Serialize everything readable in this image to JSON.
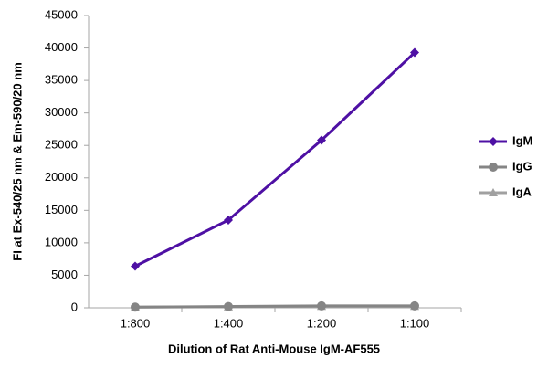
{
  "chart_data": {
    "type": "line",
    "x_label": "Dilution of Rat Anti-Mouse IgM-AF555",
    "y_label": "FI at Ex-540/25 nm & Em-590/20 nm",
    "categories": [
      "1:800",
      "1:400",
      "1:200",
      "1:100"
    ],
    "series": [
      {
        "name": "IgM",
        "color": "#4e10a4",
        "marker": "diamond",
        "values": [
          6400,
          13500,
          25800,
          39300
        ]
      },
      {
        "name": "IgG",
        "color": "#858585",
        "marker": "circle",
        "values": [
          100,
          200,
          300,
          300
        ]
      },
      {
        "name": "IgA",
        "color": "#a0a0a0",
        "marker": "triangle",
        "values": [
          100,
          150,
          250,
          250
        ]
      }
    ],
    "ylim": [
      0,
      45000
    ],
    "yticks": [
      0,
      5000,
      10000,
      15000,
      20000,
      25000,
      30000,
      35000,
      40000,
      45000
    ],
    "grid": false,
    "legend": "right"
  }
}
